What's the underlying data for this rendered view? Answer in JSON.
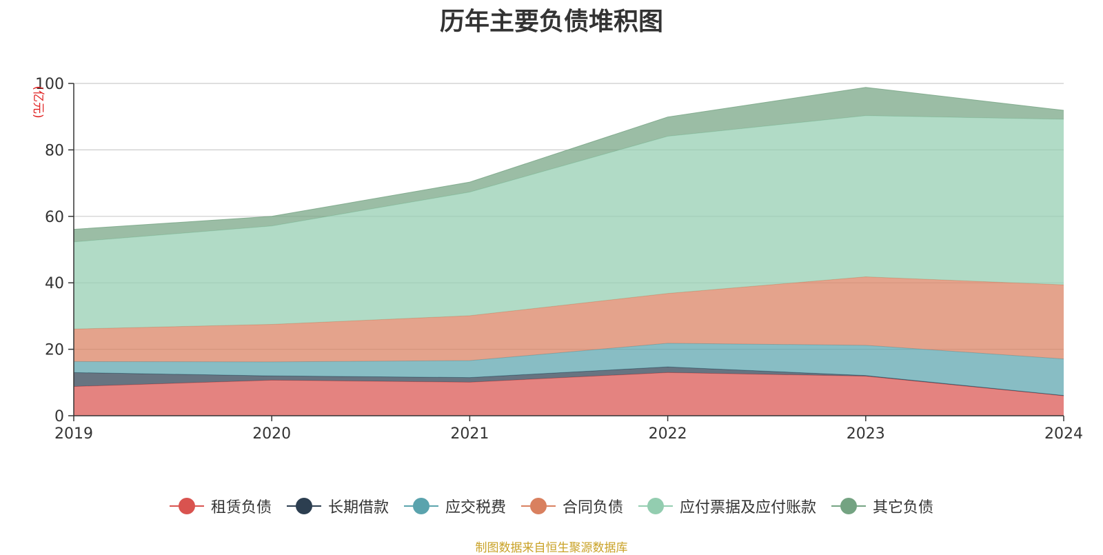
{
  "colors": {
    "series": [
      "#d9534f",
      "#2c3e50",
      "#5aa3ad",
      "#d9805f",
      "#93cdb0",
      "#74a382"
    ],
    "grid": "#cccccc",
    "axis": "#333333",
    "unit": "#e02020",
    "source": "#c9a227"
  },
  "chart_data": {
    "type": "area",
    "stacked": true,
    "title": "历年主要负债堆积图",
    "ylabel": "(亿元)",
    "xlabel": "",
    "ylim": [
      0,
      100
    ],
    "yticks": [
      0,
      20,
      40,
      60,
      80,
      100
    ],
    "grid": true,
    "legend_position": "bottom",
    "x": [
      "2019",
      "2020",
      "2021",
      "2022",
      "2023",
      "2024"
    ],
    "series": [
      {
        "name": "租赁负债",
        "values": [
          8.8,
          10.7,
          10.1,
          13.0,
          11.9,
          6.0
        ]
      },
      {
        "name": "长期借款",
        "values": [
          4.2,
          1.3,
          1.4,
          1.7,
          0.2,
          0.1
        ]
      },
      {
        "name": "应交税费",
        "values": [
          3.3,
          4.2,
          5.1,
          7.1,
          9.1,
          11.0
        ]
      },
      {
        "name": "合同负债",
        "values": [
          9.8,
          11.3,
          13.5,
          15.0,
          20.6,
          22.3
        ]
      },
      {
        "name": "应付票据及应付账款",
        "values": [
          26.2,
          29.6,
          37.2,
          47.3,
          48.5,
          49.8
        ]
      },
      {
        "name": "其它负债",
        "values": [
          3.8,
          2.9,
          3.0,
          5.8,
          8.5,
          2.7
        ]
      }
    ]
  },
  "source_note": "制图数据来自恒生聚源数据库"
}
